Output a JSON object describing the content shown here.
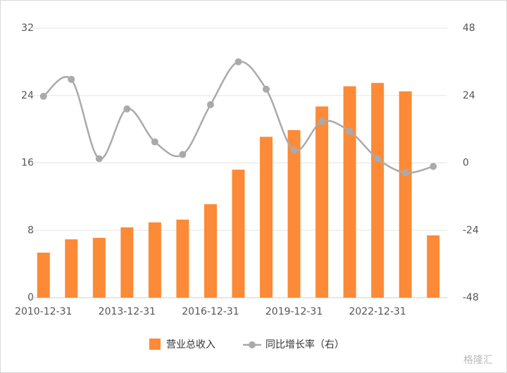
{
  "chart_data": {
    "type": "bar_line",
    "categories": [
      "2010-12-31",
      null,
      null,
      "2013-12-31",
      null,
      null,
      "2016-12-31",
      null,
      null,
      "2019-12-31",
      null,
      null,
      "2022-12-31",
      null,
      null
    ],
    "series": [
      {
        "name": "营业总收入",
        "type": "bar",
        "color": "#fd8a36",
        "values": [
          5.35,
          6.93,
          7.1,
          8.35,
          8.94,
          9.27,
          11.1,
          15.2,
          19.1,
          19.9,
          22.7,
          25.1,
          25.5,
          24.5,
          7.4
        ]
      },
      {
        "name": "同比增长率（右）",
        "type": "line",
        "axis": "y2",
        "color": "#aaaaaa",
        "values": [
          23.75,
          29.75,
          1.5,
          19.25,
          7.5,
          3,
          20.75,
          36,
          26.25,
          4.5,
          14.75,
          11.25,
          1.5,
          -3.5,
          -1.25
        ]
      }
    ],
    "ylim": [
      0,
      32
    ],
    "yticks": [
      0,
      8,
      16,
      24,
      32
    ],
    "y2lim": [
      -48,
      48
    ],
    "y2ticks": [
      -48,
      -24,
      0,
      24,
      48
    ],
    "grid": true,
    "legend": "bottom",
    "watermark": "格隆汇"
  }
}
